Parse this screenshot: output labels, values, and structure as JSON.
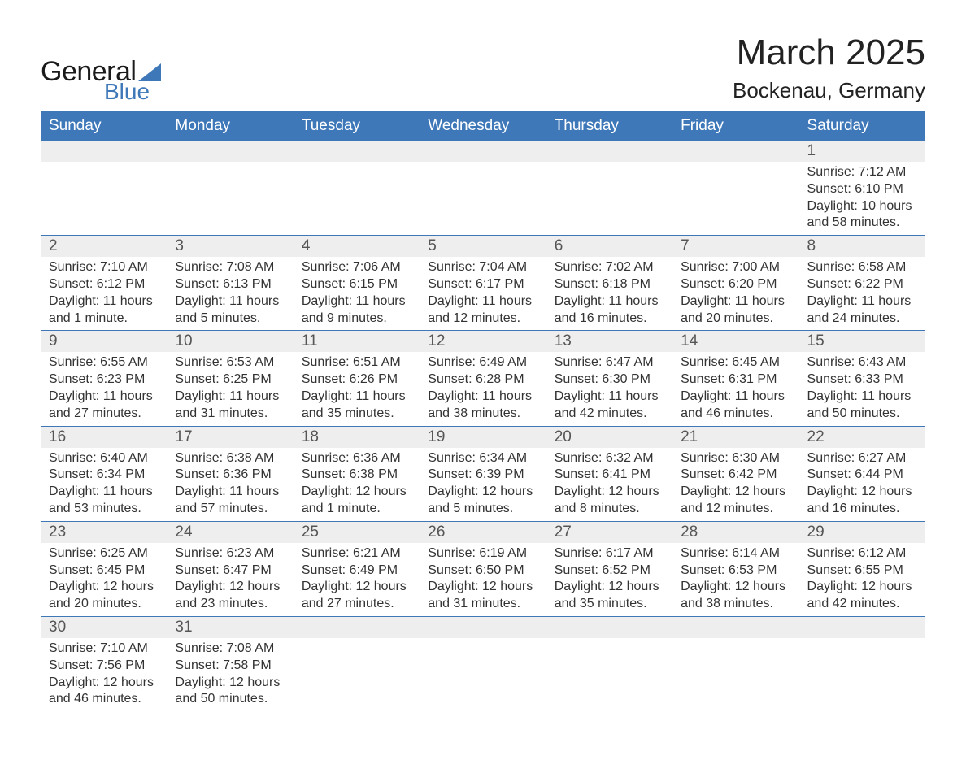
{
  "colors": {
    "header_bg": "#3e78b9",
    "header_text": "#ffffff",
    "daynum_bg": "#eeeeee",
    "daynum_text": "#555555",
    "body_text": "#333333",
    "row_border": "#3e78b9",
    "logo_dark": "#1a1a1a",
    "logo_blue": "#3e78b9",
    "background": "#ffffff"
  },
  "logo": {
    "line1": "General",
    "line2": "Blue"
  },
  "title": {
    "month": "March 2025",
    "location": "Bockenau, Germany"
  },
  "weekdays": [
    "Sunday",
    "Monday",
    "Tuesday",
    "Wednesday",
    "Thursday",
    "Friday",
    "Saturday"
  ],
  "weeks": [
    [
      null,
      null,
      null,
      null,
      null,
      null,
      {
        "day": "1",
        "sunrise": "Sunrise: 7:12 AM",
        "sunset": "Sunset: 6:10 PM",
        "daylight": "Daylight: 10 hours and 58 minutes."
      }
    ],
    [
      {
        "day": "2",
        "sunrise": "Sunrise: 7:10 AM",
        "sunset": "Sunset: 6:12 PM",
        "daylight": "Daylight: 11 hours and 1 minute."
      },
      {
        "day": "3",
        "sunrise": "Sunrise: 7:08 AM",
        "sunset": "Sunset: 6:13 PM",
        "daylight": "Daylight: 11 hours and 5 minutes."
      },
      {
        "day": "4",
        "sunrise": "Sunrise: 7:06 AM",
        "sunset": "Sunset: 6:15 PM",
        "daylight": "Daylight: 11 hours and 9 minutes."
      },
      {
        "day": "5",
        "sunrise": "Sunrise: 7:04 AM",
        "sunset": "Sunset: 6:17 PM",
        "daylight": "Daylight: 11 hours and 12 minutes."
      },
      {
        "day": "6",
        "sunrise": "Sunrise: 7:02 AM",
        "sunset": "Sunset: 6:18 PM",
        "daylight": "Daylight: 11 hours and 16 minutes."
      },
      {
        "day": "7",
        "sunrise": "Sunrise: 7:00 AM",
        "sunset": "Sunset: 6:20 PM",
        "daylight": "Daylight: 11 hours and 20 minutes."
      },
      {
        "day": "8",
        "sunrise": "Sunrise: 6:58 AM",
        "sunset": "Sunset: 6:22 PM",
        "daylight": "Daylight: 11 hours and 24 minutes."
      }
    ],
    [
      {
        "day": "9",
        "sunrise": "Sunrise: 6:55 AM",
        "sunset": "Sunset: 6:23 PM",
        "daylight": "Daylight: 11 hours and 27 minutes."
      },
      {
        "day": "10",
        "sunrise": "Sunrise: 6:53 AM",
        "sunset": "Sunset: 6:25 PM",
        "daylight": "Daylight: 11 hours and 31 minutes."
      },
      {
        "day": "11",
        "sunrise": "Sunrise: 6:51 AM",
        "sunset": "Sunset: 6:26 PM",
        "daylight": "Daylight: 11 hours and 35 minutes."
      },
      {
        "day": "12",
        "sunrise": "Sunrise: 6:49 AM",
        "sunset": "Sunset: 6:28 PM",
        "daylight": "Daylight: 11 hours and 38 minutes."
      },
      {
        "day": "13",
        "sunrise": "Sunrise: 6:47 AM",
        "sunset": "Sunset: 6:30 PM",
        "daylight": "Daylight: 11 hours and 42 minutes."
      },
      {
        "day": "14",
        "sunrise": "Sunrise: 6:45 AM",
        "sunset": "Sunset: 6:31 PM",
        "daylight": "Daylight: 11 hours and 46 minutes."
      },
      {
        "day": "15",
        "sunrise": "Sunrise: 6:43 AM",
        "sunset": "Sunset: 6:33 PM",
        "daylight": "Daylight: 11 hours and 50 minutes."
      }
    ],
    [
      {
        "day": "16",
        "sunrise": "Sunrise: 6:40 AM",
        "sunset": "Sunset: 6:34 PM",
        "daylight": "Daylight: 11 hours and 53 minutes."
      },
      {
        "day": "17",
        "sunrise": "Sunrise: 6:38 AM",
        "sunset": "Sunset: 6:36 PM",
        "daylight": "Daylight: 11 hours and 57 minutes."
      },
      {
        "day": "18",
        "sunrise": "Sunrise: 6:36 AM",
        "sunset": "Sunset: 6:38 PM",
        "daylight": "Daylight: 12 hours and 1 minute."
      },
      {
        "day": "19",
        "sunrise": "Sunrise: 6:34 AM",
        "sunset": "Sunset: 6:39 PM",
        "daylight": "Daylight: 12 hours and 5 minutes."
      },
      {
        "day": "20",
        "sunrise": "Sunrise: 6:32 AM",
        "sunset": "Sunset: 6:41 PM",
        "daylight": "Daylight: 12 hours and 8 minutes."
      },
      {
        "day": "21",
        "sunrise": "Sunrise: 6:30 AM",
        "sunset": "Sunset: 6:42 PM",
        "daylight": "Daylight: 12 hours and 12 minutes."
      },
      {
        "day": "22",
        "sunrise": "Sunrise: 6:27 AM",
        "sunset": "Sunset: 6:44 PM",
        "daylight": "Daylight: 12 hours and 16 minutes."
      }
    ],
    [
      {
        "day": "23",
        "sunrise": "Sunrise: 6:25 AM",
        "sunset": "Sunset: 6:45 PM",
        "daylight": "Daylight: 12 hours and 20 minutes."
      },
      {
        "day": "24",
        "sunrise": "Sunrise: 6:23 AM",
        "sunset": "Sunset: 6:47 PM",
        "daylight": "Daylight: 12 hours and 23 minutes."
      },
      {
        "day": "25",
        "sunrise": "Sunrise: 6:21 AM",
        "sunset": "Sunset: 6:49 PM",
        "daylight": "Daylight: 12 hours and 27 minutes."
      },
      {
        "day": "26",
        "sunrise": "Sunrise: 6:19 AM",
        "sunset": "Sunset: 6:50 PM",
        "daylight": "Daylight: 12 hours and 31 minutes."
      },
      {
        "day": "27",
        "sunrise": "Sunrise: 6:17 AM",
        "sunset": "Sunset: 6:52 PM",
        "daylight": "Daylight: 12 hours and 35 minutes."
      },
      {
        "day": "28",
        "sunrise": "Sunrise: 6:14 AM",
        "sunset": "Sunset: 6:53 PM",
        "daylight": "Daylight: 12 hours and 38 minutes."
      },
      {
        "day": "29",
        "sunrise": "Sunrise: 6:12 AM",
        "sunset": "Sunset: 6:55 PM",
        "daylight": "Daylight: 12 hours and 42 minutes."
      }
    ],
    [
      {
        "day": "30",
        "sunrise": "Sunrise: 7:10 AM",
        "sunset": "Sunset: 7:56 PM",
        "daylight": "Daylight: 12 hours and 46 minutes."
      },
      {
        "day": "31",
        "sunrise": "Sunrise: 7:08 AM",
        "sunset": "Sunset: 7:58 PM",
        "daylight": "Daylight: 12 hours and 50 minutes."
      },
      null,
      null,
      null,
      null,
      null
    ]
  ]
}
